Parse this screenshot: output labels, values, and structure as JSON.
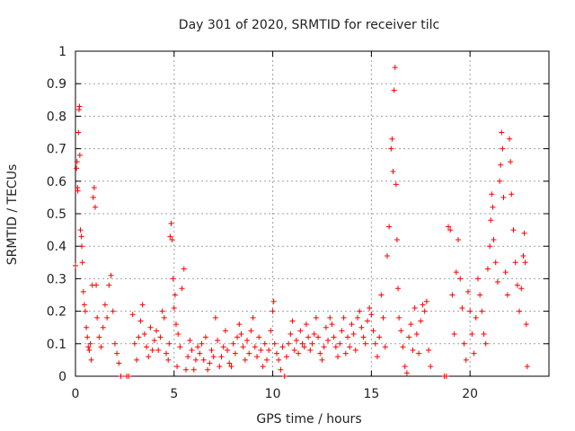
{
  "chart_data": {
    "type": "scatter",
    "title": "Day 301 of 2020, SRMTID for receiver tilc",
    "xlabel": "GPS time / hours",
    "ylabel": "SRMTID / TECUs",
    "xlim": [
      0,
      24
    ],
    "ylim": [
      0,
      1
    ],
    "xticks": [
      0,
      5,
      10,
      15,
      20
    ],
    "yticks": [
      0,
      0.1,
      0.2,
      0.3,
      0.4,
      0.5,
      0.6,
      0.7,
      0.8,
      0.9,
      1
    ],
    "grid": true,
    "marker": "+",
    "color": "#ff0000",
    "series": [
      {
        "points": [
          [
            0.0,
            0.34
          ],
          [
            0.05,
            0.64
          ],
          [
            0.08,
            0.66
          ],
          [
            0.1,
            0.58
          ],
          [
            0.12,
            0.57
          ],
          [
            0.15,
            0.75
          ],
          [
            0.18,
            0.82
          ],
          [
            0.2,
            0.83
          ],
          [
            0.22,
            0.68
          ],
          [
            0.25,
            0.45
          ],
          [
            0.3,
            0.43
          ],
          [
            0.32,
            0.4
          ],
          [
            0.35,
            0.35
          ],
          [
            0.4,
            0.26
          ],
          [
            0.45,
            0.22
          ],
          [
            0.5,
            0.2
          ],
          [
            0.55,
            0.15
          ],
          [
            0.6,
            0.12
          ],
          [
            0.65,
            0.09
          ],
          [
            0.7,
            0.08
          ],
          [
            0.75,
            0.1
          ],
          [
            0.8,
            0.05
          ],
          [
            0.85,
            0.28
          ],
          [
            0.9,
            0.55
          ],
          [
            0.95,
            0.58
          ],
          [
            1.0,
            0.52
          ],
          [
            1.05,
            0.28
          ],
          [
            1.1,
            0.18
          ],
          [
            1.2,
            0.12
          ],
          [
            1.3,
            0.09
          ],
          [
            1.4,
            0.15
          ],
          [
            1.5,
            0.22
          ],
          [
            1.6,
            0.18
          ],
          [
            1.7,
            0.28
          ],
          [
            1.8,
            0.31
          ],
          [
            1.9,
            0.2
          ],
          [
            2.0,
            0.1
          ],
          [
            2.1,
            0.07
          ],
          [
            2.2,
            0.04
          ],
          [
            2.3,
            0.0
          ],
          [
            2.6,
            0.0
          ],
          [
            2.7,
            0.0
          ],
          [
            2.9,
            0.19
          ],
          [
            3.0,
            0.1
          ],
          [
            3.1,
            0.05
          ],
          [
            3.2,
            0.12
          ],
          [
            3.3,
            0.17
          ],
          [
            3.4,
            0.22
          ],
          [
            3.5,
            0.13
          ],
          [
            3.6,
            0.09
          ],
          [
            3.7,
            0.06
          ],
          [
            3.8,
            0.15
          ],
          [
            3.9,
            0.08
          ],
          [
            4.0,
            0.11
          ],
          [
            4.1,
            0.14
          ],
          [
            4.2,
            0.08
          ],
          [
            4.3,
            0.12
          ],
          [
            4.4,
            0.2
          ],
          [
            4.5,
            0.18
          ],
          [
            4.6,
            0.07
          ],
          [
            4.7,
            0.05
          ],
          [
            4.75,
            0.1
          ],
          [
            4.8,
            0.43
          ],
          [
            4.85,
            0.47
          ],
          [
            4.9,
            0.42
          ],
          [
            4.95,
            0.3
          ],
          [
            5.0,
            0.21
          ],
          [
            5.05,
            0.25
          ],
          [
            5.1,
            0.16
          ],
          [
            5.15,
            0.03
          ],
          [
            5.2,
            0.13
          ],
          [
            5.3,
            0.09
          ],
          [
            5.4,
            0.27
          ],
          [
            5.5,
            0.33
          ],
          [
            5.6,
            0.02
          ],
          [
            5.7,
            0.06
          ],
          [
            5.8,
            0.11
          ],
          [
            5.9,
            0.08
          ],
          [
            6.0,
            0.02
          ],
          [
            6.1,
            0.05
          ],
          [
            6.2,
            0.09
          ],
          [
            6.3,
            0.07
          ],
          [
            6.4,
            0.1
          ],
          [
            6.5,
            0.05
          ],
          [
            6.6,
            0.12
          ],
          [
            6.7,
            0.02
          ],
          [
            6.8,
            0.04
          ],
          [
            6.9,
            0.08
          ],
          [
            7.0,
            0.06
          ],
          [
            7.1,
            0.18
          ],
          [
            7.2,
            0.11
          ],
          [
            7.3,
            0.03
          ],
          [
            7.4,
            0.06
          ],
          [
            7.5,
            0.09
          ],
          [
            7.6,
            0.14
          ],
          [
            7.7,
            0.08
          ],
          [
            7.8,
            0.04
          ],
          [
            7.9,
            0.03
          ],
          [
            8.0,
            0.1
          ],
          [
            8.1,
            0.07
          ],
          [
            8.2,
            0.12
          ],
          [
            8.3,
            0.16
          ],
          [
            8.4,
            0.13
          ],
          [
            8.5,
            0.09
          ],
          [
            8.6,
            0.05
          ],
          [
            8.7,
            0.11
          ],
          [
            8.8,
            0.07
          ],
          [
            8.9,
            0.14
          ],
          [
            9.0,
            0.18
          ],
          [
            9.1,
            0.09
          ],
          [
            9.2,
            0.06
          ],
          [
            9.3,
            0.12
          ],
          [
            9.4,
            0.08
          ],
          [
            9.5,
            0.03
          ],
          [
            9.6,
            0.1
          ],
          [
            9.7,
            0.05
          ],
          [
            9.8,
            0.08
          ],
          [
            9.9,
            0.14
          ],
          [
            10.0,
            0.2
          ],
          [
            10.05,
            0.23
          ],
          [
            10.1,
            0.1
          ],
          [
            10.2,
            0.07
          ],
          [
            10.3,
            0.05
          ],
          [
            10.4,
            0.02
          ],
          [
            10.5,
            0.09
          ],
          [
            10.6,
            0.0
          ],
          [
            10.7,
            0.06
          ],
          [
            10.8,
            0.1
          ],
          [
            10.9,
            0.13
          ],
          [
            11.0,
            0.17
          ],
          [
            11.1,
            0.08
          ],
          [
            11.2,
            0.11
          ],
          [
            11.3,
            0.07
          ],
          [
            11.4,
            0.14
          ],
          [
            11.5,
            0.1
          ],
          [
            11.6,
            0.09
          ],
          [
            11.7,
            0.16
          ],
          [
            11.8,
            0.12
          ],
          [
            11.9,
            0.08
          ],
          [
            12.0,
            0.1
          ],
          [
            12.1,
            0.13
          ],
          [
            12.2,
            0.18
          ],
          [
            12.3,
            0.12
          ],
          [
            12.4,
            0.07
          ],
          [
            12.5,
            0.05
          ],
          [
            12.6,
            0.09
          ],
          [
            12.7,
            0.15
          ],
          [
            12.8,
            0.11
          ],
          [
            12.9,
            0.18
          ],
          [
            13.0,
            0.16
          ],
          [
            13.1,
            0.12
          ],
          [
            13.2,
            0.09
          ],
          [
            13.3,
            0.06
          ],
          [
            13.4,
            0.1
          ],
          [
            13.5,
            0.14
          ],
          [
            13.6,
            0.18
          ],
          [
            13.7,
            0.07
          ],
          [
            13.8,
            0.12
          ],
          [
            13.9,
            0.09
          ],
          [
            14.0,
            0.16
          ],
          [
            14.1,
            0.13
          ],
          [
            14.2,
            0.08
          ],
          [
            14.3,
            0.18
          ],
          [
            14.4,
            0.2
          ],
          [
            14.5,
            0.15
          ],
          [
            14.6,
            0.12
          ],
          [
            14.7,
            0.1
          ],
          [
            14.8,
            0.17
          ],
          [
            14.9,
            0.21
          ],
          [
            15.0,
            0.19
          ],
          [
            15.1,
            0.14
          ],
          [
            15.2,
            0.1
          ],
          [
            15.3,
            0.06
          ],
          [
            15.4,
            0.12
          ],
          [
            15.5,
            0.25
          ],
          [
            15.6,
            0.18
          ],
          [
            15.7,
            0.09
          ],
          [
            15.8,
            0.37
          ],
          [
            15.9,
            0.46
          ],
          [
            16.0,
            0.7
          ],
          [
            16.05,
            0.73
          ],
          [
            16.1,
            0.63
          ],
          [
            16.15,
            0.88
          ],
          [
            16.2,
            0.95
          ],
          [
            16.25,
            0.59
          ],
          [
            16.3,
            0.42
          ],
          [
            16.35,
            0.27
          ],
          [
            16.4,
            0.18
          ],
          [
            16.5,
            0.14
          ],
          [
            16.6,
            0.09
          ],
          [
            16.7,
            0.03
          ],
          [
            16.8,
            0.01
          ],
          [
            16.9,
            0.12
          ],
          [
            17.0,
            0.16
          ],
          [
            17.1,
            0.08
          ],
          [
            17.2,
            0.21
          ],
          [
            17.3,
            0.13
          ],
          [
            17.4,
            0.07
          ],
          [
            17.5,
            0.17
          ],
          [
            17.6,
            0.22
          ],
          [
            17.7,
            0.2
          ],
          [
            17.8,
            0.23
          ],
          [
            17.9,
            0.08
          ],
          [
            18.0,
            0.03
          ],
          [
            18.7,
            0.0
          ],
          [
            18.8,
            0.0
          ],
          [
            18.9,
            0.46
          ],
          [
            19.0,
            0.45
          ],
          [
            19.1,
            0.25
          ],
          [
            19.2,
            0.13
          ],
          [
            19.3,
            0.32
          ],
          [
            19.4,
            0.42
          ],
          [
            19.5,
            0.3
          ],
          [
            19.6,
            0.21
          ],
          [
            19.7,
            0.1
          ],
          [
            19.8,
            0.05
          ],
          [
            19.9,
            0.26
          ],
          [
            20.0,
            0.2
          ],
          [
            20.1,
            0.13
          ],
          [
            20.2,
            0.07
          ],
          [
            20.3,
            0.18
          ],
          [
            20.4,
            0.3
          ],
          [
            20.5,
            0.25
          ],
          [
            20.6,
            0.2
          ],
          [
            20.7,
            0.13
          ],
          [
            20.8,
            0.1
          ],
          [
            20.9,
            0.33
          ],
          [
            21.0,
            0.4
          ],
          [
            21.05,
            0.48
          ],
          [
            21.1,
            0.56
          ],
          [
            21.15,
            0.52
          ],
          [
            21.2,
            0.42
          ],
          [
            21.3,
            0.35
          ],
          [
            21.4,
            0.29
          ],
          [
            21.5,
            0.6
          ],
          [
            21.55,
            0.65
          ],
          [
            21.6,
            0.75
          ],
          [
            21.65,
            0.7
          ],
          [
            21.7,
            0.55
          ],
          [
            21.8,
            0.32
          ],
          [
            21.9,
            0.25
          ],
          [
            22.0,
            0.73
          ],
          [
            22.05,
            0.66
          ],
          [
            22.1,
            0.56
          ],
          [
            22.2,
            0.45
          ],
          [
            22.3,
            0.35
          ],
          [
            22.4,
            0.28
          ],
          [
            22.5,
            0.2
          ],
          [
            22.6,
            0.27
          ],
          [
            22.7,
            0.37
          ],
          [
            22.75,
            0.44
          ],
          [
            22.8,
            0.35
          ],
          [
            22.85,
            0.16
          ],
          [
            22.9,
            0.03
          ]
        ]
      }
    ]
  }
}
